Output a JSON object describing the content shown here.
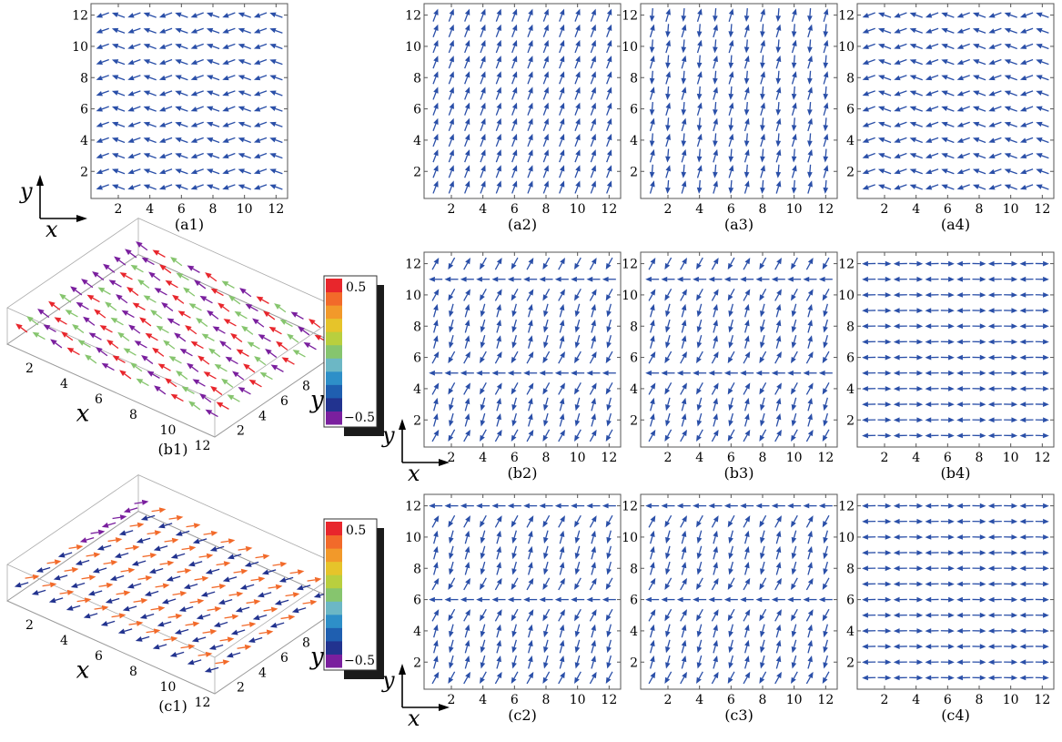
{
  "colors": {
    "arrow": "#2a4fa8",
    "frame": "#555555",
    "axis": "#000000",
    "colorbar": [
      "#7a1f9e",
      "#22338f",
      "#1f5fb0",
      "#2e8fc8",
      "#6cb7c5",
      "#86c56e",
      "#b9cf3e",
      "#e6c42a",
      "#f2992a",
      "#f26a2a",
      "#e8262c"
    ],
    "shadow": "#1b1b1b",
    "b1_arrows": [
      "#e8262c",
      "#86c56e",
      "#7a1f9e"
    ],
    "c1_arrows": [
      "#22338f",
      "#f26a2a",
      "#7a1f9e"
    ]
  },
  "panels": {
    "a1": {
      "label": "(a1)",
      "pattern": "zigzag"
    },
    "a2": {
      "label": "(a2)",
      "pattern": "diagonal"
    },
    "a3": {
      "label": "(a3)",
      "pattern": "checker"
    },
    "a4": {
      "label": "(a4)",
      "pattern": "zigzag"
    },
    "b1": {
      "label": "(b1)"
    },
    "b2": {
      "label": "(b2)",
      "pattern": "wall5"
    },
    "b3": {
      "label": "(b3)",
      "pattern": "wall5"
    },
    "b4": {
      "label": "(b4)",
      "pattern": "stripes"
    },
    "c1": {
      "label": "(c1)"
    },
    "c2": {
      "label": "(c2)",
      "pattern": "wall6"
    },
    "c3": {
      "label": "(c3)",
      "pattern": "wall6"
    },
    "c4": {
      "label": "(c4)",
      "pattern": "stripes"
    }
  },
  "ticks": [
    "2",
    "4",
    "6",
    "8",
    "10",
    "12"
  ],
  "axes": {
    "x": "x",
    "y": "y"
  },
  "colorbar": {
    "max_label": "0.5",
    "min_label": "−0.5"
  }
}
